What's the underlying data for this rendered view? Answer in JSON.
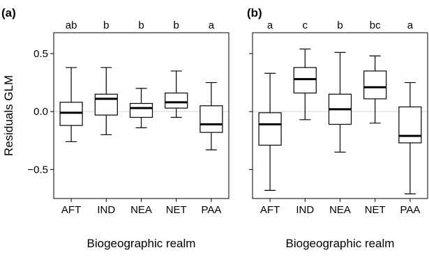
{
  "chart_data": [
    {
      "type": "boxplot",
      "panel_label": "(a)",
      "xlabel": "Biogeographic realm",
      "ylabel": "Residuals GLM",
      "ylim": [
        -0.75,
        0.68
      ],
      "yticks": [
        -0.5,
        0.0,
        0.5
      ],
      "ytick_labels": [
        "−0.5",
        "0.0",
        "0.5"
      ],
      "reference_line": 0.0,
      "categories": [
        "AFT",
        "IND",
        "NEA",
        "NET",
        "PAA"
      ],
      "group_letters": [
        "ab",
        "b",
        "b",
        "b",
        "a"
      ],
      "boxes": [
        {
          "whisker_low": -0.26,
          "q1": -0.12,
          "median": -0.01,
          "q3": 0.08,
          "whisker_high": 0.38
        },
        {
          "whisker_low": -0.2,
          "q1": -0.03,
          "median": 0.11,
          "q3": 0.15,
          "whisker_high": 0.38
        },
        {
          "whisker_low": -0.14,
          "q1": -0.05,
          "median": 0.03,
          "q3": 0.07,
          "whisker_high": 0.2
        },
        {
          "whisker_low": -0.05,
          "q1": 0.03,
          "median": 0.08,
          "q3": 0.16,
          "whisker_high": 0.35
        },
        {
          "whisker_low": -0.33,
          "q1": -0.18,
          "median": -0.11,
          "q3": 0.05,
          "whisker_high": 0.25
        }
      ]
    },
    {
      "type": "boxplot",
      "panel_label": "(b)",
      "xlabel": "Biogeographic realm",
      "ylabel": "",
      "ylim": [
        -0.75,
        0.68
      ],
      "yticks": [
        -0.5,
        0.0,
        0.5
      ],
      "reference_line": 0.0,
      "categories": [
        "AFT",
        "IND",
        "NEA",
        "NET",
        "PAA"
      ],
      "group_letters": [
        "a",
        "c",
        "b",
        "bc",
        "a"
      ],
      "boxes": [
        {
          "whisker_low": -0.68,
          "q1": -0.29,
          "median": -0.11,
          "q3": -0.01,
          "whisker_high": 0.33
        },
        {
          "whisker_low": -0.07,
          "q1": 0.16,
          "median": 0.28,
          "q3": 0.38,
          "whisker_high": 0.54
        },
        {
          "whisker_low": -0.35,
          "q1": -0.11,
          "median": 0.02,
          "q3": 0.15,
          "whisker_high": 0.51
        },
        {
          "whisker_low": -0.1,
          "q1": 0.11,
          "median": 0.21,
          "q3": 0.35,
          "whisker_high": 0.48
        },
        {
          "whisker_low": -0.71,
          "q1": -0.27,
          "median": -0.21,
          "q3": 0.04,
          "whisker_high": 0.25
        }
      ]
    }
  ]
}
